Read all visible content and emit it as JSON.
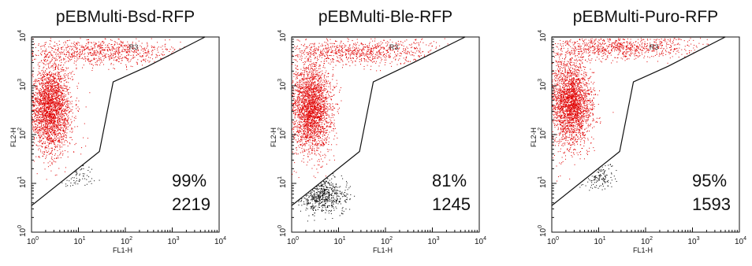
{
  "chart_data": [
    {
      "type": "scatter",
      "title": "pEBMulti-Bsd-RFP",
      "xlabel": "FL1-H",
      "ylabel": "FL2-H",
      "xscale": "log",
      "yscale": "log",
      "xlim": [
        1,
        10000
      ],
      "ylim": [
        1,
        10000
      ],
      "x_ticks": [
        "10",
        "10",
        "10",
        "10",
        "10"
      ],
      "x_tick_exponents": [
        "0",
        "1",
        "2",
        "3",
        "4"
      ],
      "y_ticks": [
        "10",
        "10",
        "10",
        "10",
        "10"
      ],
      "y_tick_exponents": [
        "0",
        "1",
        "2",
        "3",
        "4"
      ],
      "gate": {
        "name": "R3",
        "polygon": [
          [
            1,
            3.5
          ],
          [
            28,
            45
          ],
          [
            55,
            1200
          ],
          [
            300,
            2500
          ],
          [
            5000,
            10000
          ],
          [
            1,
            10000
          ]
        ]
      },
      "annotations": [
        "99%",
        "2219"
      ],
      "series": [
        {
          "color": "#e00000",
          "points": [
            [
              2.5,
              300
            ],
            [
              3,
              800
            ],
            [
              2,
              1500
            ],
            [
              4,
              150
            ],
            [
              6,
              80
            ],
            [
              10,
              3000
            ],
            [
              50,
              6500
            ],
            [
              200,
              8500
            ],
            [
              1000,
              9300
            ],
            [
              3000,
              9700
            ]
          ]
        },
        {
          "color": "#000000",
          "points": [
            [
              8,
              12
            ],
            [
              10,
              14
            ],
            [
              12,
              16
            ],
            [
              15,
              20
            ],
            [
              7,
              10
            ]
          ]
        }
      ]
    },
    {
      "type": "scatter",
      "title": "pEBMulti-Ble-RFP",
      "xlabel": "FL1-H",
      "ylabel": "FL2-H",
      "xscale": "log",
      "yscale": "log",
      "xlim": [
        1,
        10000
      ],
      "ylim": [
        1,
        10000
      ],
      "x_ticks": [
        "10",
        "10",
        "10",
        "10",
        "10"
      ],
      "x_tick_exponents": [
        "0",
        "1",
        "2",
        "3",
        "4"
      ],
      "y_ticks": [
        "10",
        "10",
        "10",
        "10",
        "10"
      ],
      "y_tick_exponents": [
        "0",
        "1",
        "2",
        "3",
        "4"
      ],
      "gate": {
        "name": "R3",
        "polygon": [
          [
            1,
            3.5
          ],
          [
            28,
            45
          ],
          [
            55,
            1200
          ],
          [
            400,
            3000
          ],
          [
            5000,
            10000
          ],
          [
            1,
            10000
          ]
        ]
      },
      "annotations": [
        "81%",
        "1245"
      ],
      "series": [
        {
          "color": "#e00000",
          "points": [
            [
              2.5,
              300
            ],
            [
              3,
              800
            ],
            [
              2.5,
              1500
            ],
            [
              4,
              150
            ],
            [
              6,
              80
            ],
            [
              10,
              3000
            ],
            [
              50,
              6500
            ],
            [
              200,
              8500
            ],
            [
              1000,
              9200
            ]
          ]
        },
        {
          "color": "#000000",
          "points": [
            [
              3,
              5
            ],
            [
              4,
              6
            ],
            [
              5,
              7
            ],
            [
              7,
              8
            ],
            [
              9,
              10
            ],
            [
              6,
              4
            ]
          ]
        }
      ]
    },
    {
      "type": "scatter",
      "title": "pEBMulti-Puro-RFP",
      "xlabel": "FL1-H",
      "ylabel": "FL2-H",
      "xscale": "log",
      "yscale": "log",
      "xlim": [
        1,
        10000
      ],
      "ylim": [
        1,
        10000
      ],
      "x_ticks": [
        "10",
        "10",
        "10",
        "10",
        "10"
      ],
      "x_tick_exponents": [
        "0",
        "1",
        "2",
        "3",
        "4"
      ],
      "y_ticks": [
        "10",
        "10",
        "10",
        "10",
        "10"
      ],
      "y_tick_exponents": [
        "0",
        "1",
        "2",
        "3",
        "4"
      ],
      "gate": {
        "name": "R3",
        "polygon": [
          [
            1,
            3.5
          ],
          [
            28,
            45
          ],
          [
            55,
            1200
          ],
          [
            300,
            2500
          ],
          [
            5000,
            10000
          ],
          [
            1,
            10000
          ]
        ]
      },
      "annotations": [
        "95%",
        "1593"
      ],
      "series": [
        {
          "color": "#e00000",
          "points": [
            [
              2.5,
              400
            ],
            [
              3,
              900
            ],
            [
              2,
              1800
            ],
            [
              4,
              200
            ],
            [
              6,
              100
            ],
            [
              10,
              3000
            ],
            [
              50,
              6500
            ],
            [
              200,
              8500
            ],
            [
              1000,
              9200
            ]
          ]
        },
        {
          "color": "#000000",
          "points": [
            [
              8,
              10
            ],
            [
              10,
              12
            ],
            [
              12,
              15
            ],
            [
              15,
              18
            ],
            [
              6,
              7
            ]
          ]
        }
      ]
    }
  ]
}
